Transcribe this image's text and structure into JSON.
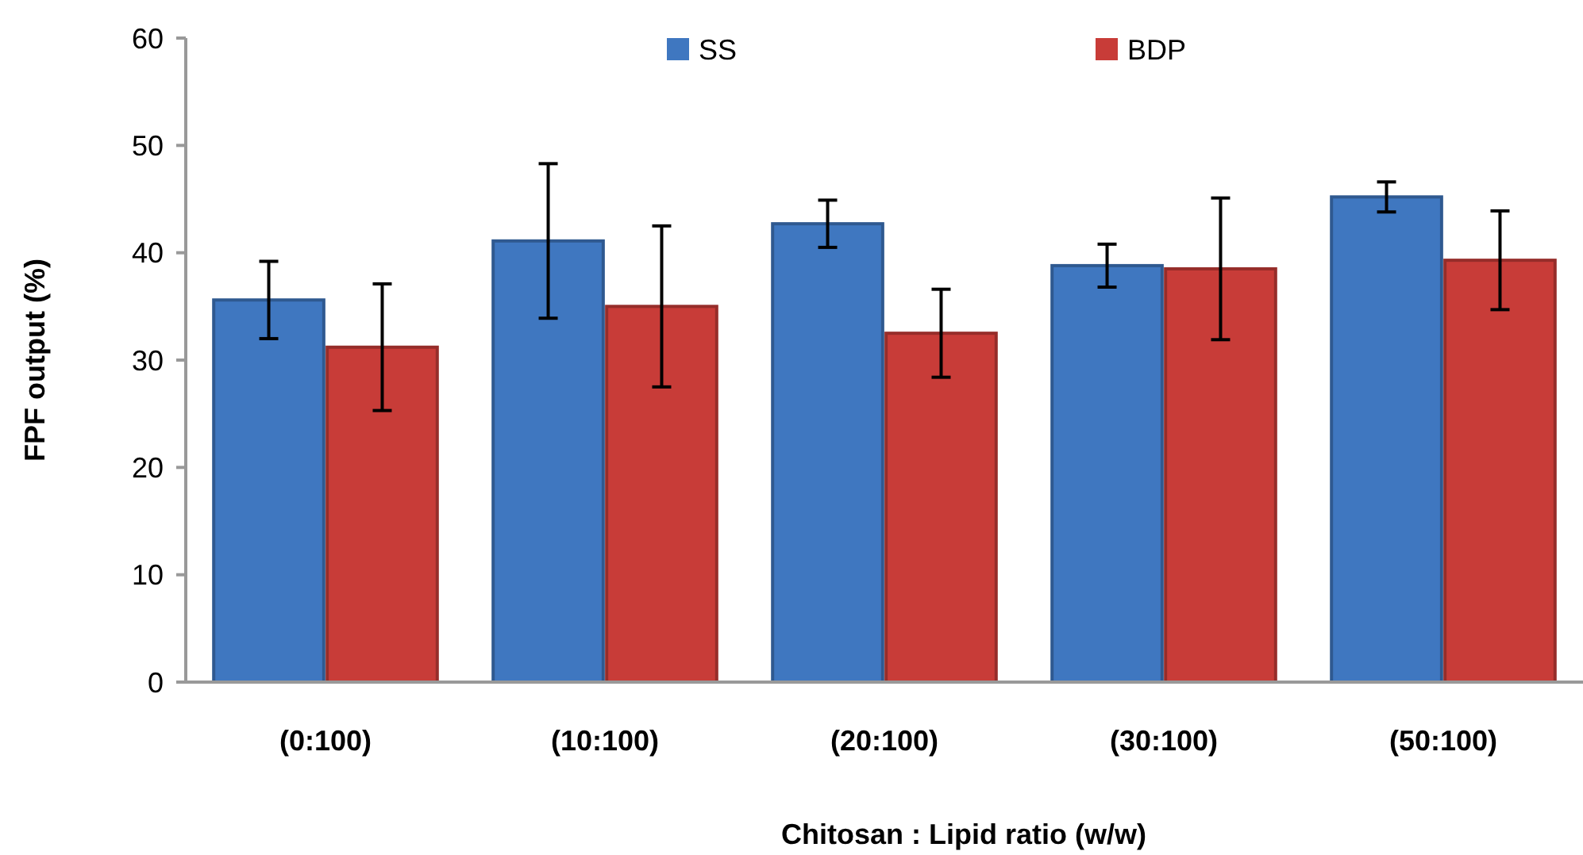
{
  "chart_data": {
    "type": "bar",
    "xlabel": "Chitosan : Lipid ratio (w/w)",
    "ylabel": "FPF output (%)",
    "categories": [
      "(0:100)",
      "(10:100)",
      "(20:100)",
      "(30:100)",
      "(50:100)"
    ],
    "series": [
      {
        "name": "SS",
        "color": "#3f77c0",
        "values": [
          35.6,
          41.1,
          42.7,
          38.8,
          45.2
        ],
        "errors": [
          3.6,
          7.2,
          2.2,
          2.0,
          1.4
        ]
      },
      {
        "name": "BDP",
        "color": "#c83c38",
        "values": [
          31.2,
          35.0,
          32.5,
          38.5,
          39.3
        ],
        "errors": [
          5.9,
          7.5,
          4.1,
          6.6,
          4.6
        ]
      }
    ],
    "ylim": [
      0,
      60
    ],
    "yticks": [
      0,
      10,
      20,
      30,
      40,
      50,
      60
    ],
    "grid": false,
    "legend": "top"
  }
}
